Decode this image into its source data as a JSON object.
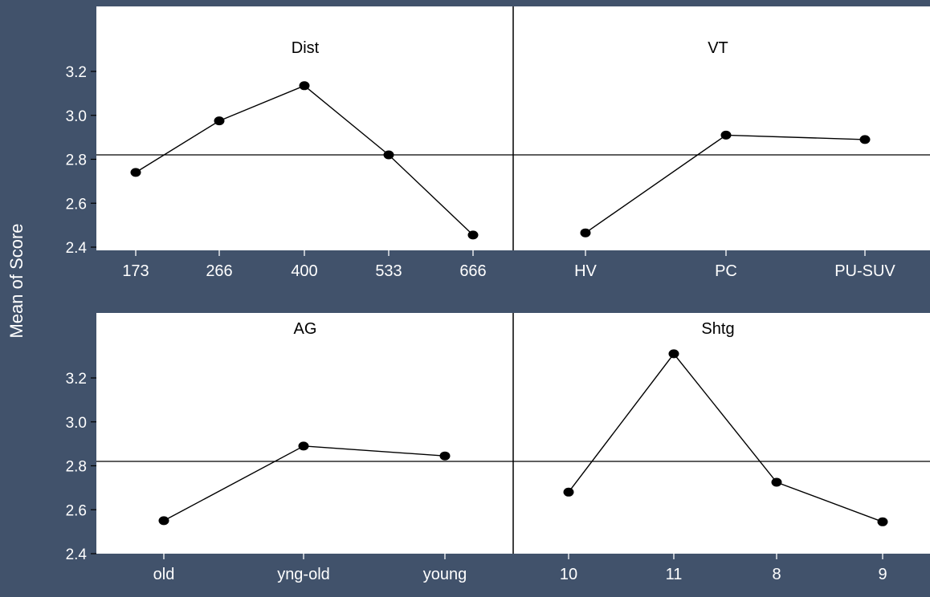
{
  "figure": {
    "ylabel": "Mean of Score",
    "colors": {
      "background": "#41526b",
      "panel": "#ffffff",
      "line": "#000000",
      "tick_text": "#ffffff"
    }
  },
  "chart_data": {
    "type": "line",
    "title": "",
    "ylabel": "Mean of Score",
    "ylim": [
      2.4,
      3.25
    ],
    "yticks": [
      "2.4",
      "2.6",
      "2.8",
      "3.0",
      "3.2"
    ],
    "reference_line": 2.82,
    "grid": false,
    "panels": [
      {
        "name": "Dist",
        "categories": [
          "173",
          "266",
          "400",
          "533",
          "666"
        ],
        "values": [
          2.74,
          2.975,
          3.135,
          2.82,
          2.455
        ]
      },
      {
        "name": "VT",
        "categories": [
          "HV",
          "PC",
          "PU-SUV"
        ],
        "values": [
          2.465,
          2.91,
          2.89
        ]
      },
      {
        "name": "AG",
        "categories": [
          "old",
          "yng-old",
          "young"
        ],
        "values": [
          2.55,
          2.89,
          2.845
        ]
      },
      {
        "name": "Shtg",
        "categories": [
          "10",
          "11",
          "8",
          "9"
        ],
        "values": [
          2.68,
          3.31,
          2.725,
          2.545
        ]
      }
    ]
  }
}
